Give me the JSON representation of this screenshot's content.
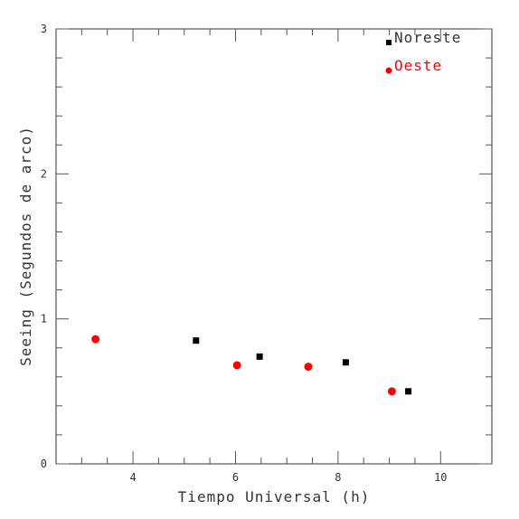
{
  "chart_data": {
    "type": "scatter",
    "xlabel": "Tiempo Universal (h)",
    "ylabel": "Seeing (Segundos de arco)",
    "xlim": [
      2.5,
      11.0
    ],
    "ylim": [
      0,
      3
    ],
    "x_ticks": [
      4,
      6,
      8,
      10
    ],
    "x_tick_labels": [
      "4",
      "6",
      "8",
      "10"
    ],
    "y_ticks": [
      0,
      1,
      2,
      3
    ],
    "y_tick_labels": [
      "0",
      "1",
      "2",
      "3"
    ],
    "grid": false,
    "legend_position": "top-right",
    "series": [
      {
        "name": "Noreste",
        "marker": "square",
        "color": "#000000",
        "x": [
          5.23,
          6.47,
          8.15,
          9.37
        ],
        "y": [
          0.85,
          0.74,
          0.7,
          0.5
        ]
      },
      {
        "name": "Oeste",
        "marker": "circle",
        "color": "#ff0000",
        "x": [
          3.27,
          6.03,
          7.42,
          9.05
        ],
        "y": [
          0.86,
          0.68,
          0.67,
          0.5
        ]
      }
    ]
  }
}
